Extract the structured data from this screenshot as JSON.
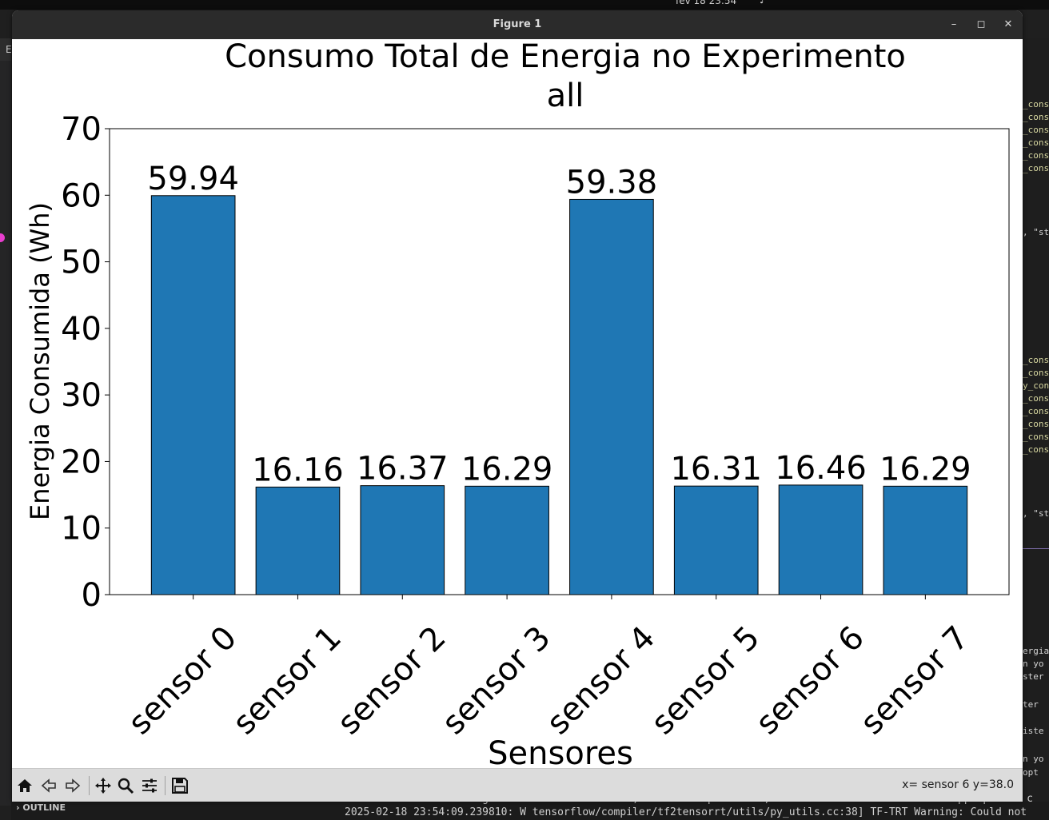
{
  "system": {
    "clock": "fev 18  23:54"
  },
  "editor": {
    "left_letter": "E",
    "code_fragments": [
      "_cons",
      "_consu",
      "_cons",
      "_cons",
      "_cons",
      "_cons",
      ", \"st",
      "_cons",
      "_consu",
      "y_con",
      "_cons",
      "_consu",
      "_cons",
      "_cons",
      "_cons",
      ", \"st",
      "ergia",
      "n yo",
      "ster",
      "ter",
      "iste",
      "n yo",
      " opt"
    ],
    "outline_label": "OUTLINE",
    "terminal_lines": [
      "To enable the following instructions: AVX2 FMA, in other operations, rebuild TensorFlow with the appropriate c",
      "2025-02-18 23:54:09.239810: W tensorflow/compiler/tf2tensorrt/utils/py_utils.cc:38] TF-TRT Warning: Could not"
    ]
  },
  "window": {
    "title": "Figure 1",
    "controls": {
      "minimize": "–",
      "maximize": "◻",
      "close": "✕"
    }
  },
  "toolbar": {
    "icons": [
      "home-icon",
      "back-icon",
      "forward-icon",
      "pan-icon",
      "zoom-icon",
      "configure-subplots-icon",
      "save-icon"
    ],
    "coords": "x= sensor 6 y=38.0"
  },
  "chart_data": {
    "type": "bar",
    "title": "Consumo Total de Energia no Experimento\nall",
    "title_lines": [
      "Consumo Total de Energia no Experimento",
      "all"
    ],
    "xlabel": "Sensores",
    "ylabel": "Energia Consumida (Wh)",
    "categories": [
      "sensor 0",
      "sensor 1",
      "sensor 2",
      "sensor 3",
      "sensor 4",
      "sensor 5",
      "sensor 6",
      "sensor 7"
    ],
    "values": [
      59.94,
      16.16,
      16.37,
      16.29,
      59.38,
      16.31,
      16.46,
      16.29
    ],
    "data_labels": [
      "59.94",
      "16.16",
      "16.37",
      "16.29",
      "59.38",
      "16.31",
      "16.46",
      "16.29"
    ],
    "ylim": [
      0,
      70
    ],
    "yticks": [
      0,
      10,
      20,
      30,
      40,
      50,
      60,
      70
    ],
    "grid": false,
    "legend": "none",
    "bar_color": "#1f77b4",
    "edge_color": "#000000"
  }
}
